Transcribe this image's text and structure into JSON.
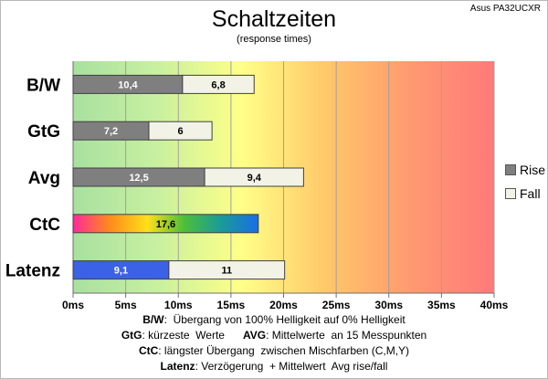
{
  "header": {
    "title": "Schaltzeiten",
    "subtitle": "(response times)",
    "model": "Asus PA32UCXR"
  },
  "legend": [
    {
      "label": "Rise",
      "color": "#7f7f7f"
    },
    {
      "label": "Fall",
      "color": "#f2f2e6"
    }
  ],
  "colors": {
    "rise": "#7f7f7f",
    "fall": "#f2f2e6",
    "latenz_rise": "#3b61e6",
    "bar_border": "#404040",
    "gradient": [
      "#a8e0a0",
      "#c8f0a0",
      "#ffff88",
      "#ffc86a",
      "#ff9a70",
      "#ff7a7a"
    ],
    "ctc_gradient": [
      "#ff2a9a",
      "#ff8c1a",
      "#ffe01a",
      "#4cbf3a",
      "#1a9a9a",
      "#1a6ee6"
    ]
  },
  "notes": [
    {
      "b1": "B/W",
      "t1": ":  Übergang von 100% Helligkeit auf 0% Helligkeit"
    },
    {
      "b1": "GtG",
      "t1": ": kürzeste  Werte      ",
      "b2": "AVG",
      "t2": ": Mittelwerte  an 15 Messpunkten"
    },
    {
      "b1": "CtC",
      "t1": ": längster Übergang  zwischen Mischfarben (C,M,Y)"
    },
    {
      "b1": "Latenz",
      "t1": ": Verzögerung  + Mittelwert  Avg rise/fall"
    }
  ],
  "chart_data": {
    "type": "bar",
    "orientation": "horizontal",
    "stacked": true,
    "categories": [
      "B/W",
      "GtG",
      "Avg",
      "CtC",
      "Latenz"
    ],
    "series": [
      {
        "name": "Rise",
        "values": [
          10.4,
          7.2,
          12.5,
          17.6,
          9.1
        ],
        "labels": [
          "10,4",
          "7,2",
          "12,5",
          "17,6",
          "9,1"
        ]
      },
      {
        "name": "Fall",
        "values": [
          6.8,
          6,
          9.4,
          null,
          11
        ],
        "labels": [
          "6,8",
          "6",
          "9,4",
          "",
          "11"
        ]
      }
    ],
    "xlim": [
      0,
      40
    ],
    "xticks": [
      0,
      5,
      10,
      15,
      20,
      25,
      30,
      35,
      40
    ],
    "xtick_labels": [
      "0ms",
      "5ms",
      "10ms",
      "15ms",
      "20ms",
      "25ms",
      "30ms",
      "35ms",
      "40ms"
    ],
    "grid": true,
    "legend_position": "right"
  }
}
